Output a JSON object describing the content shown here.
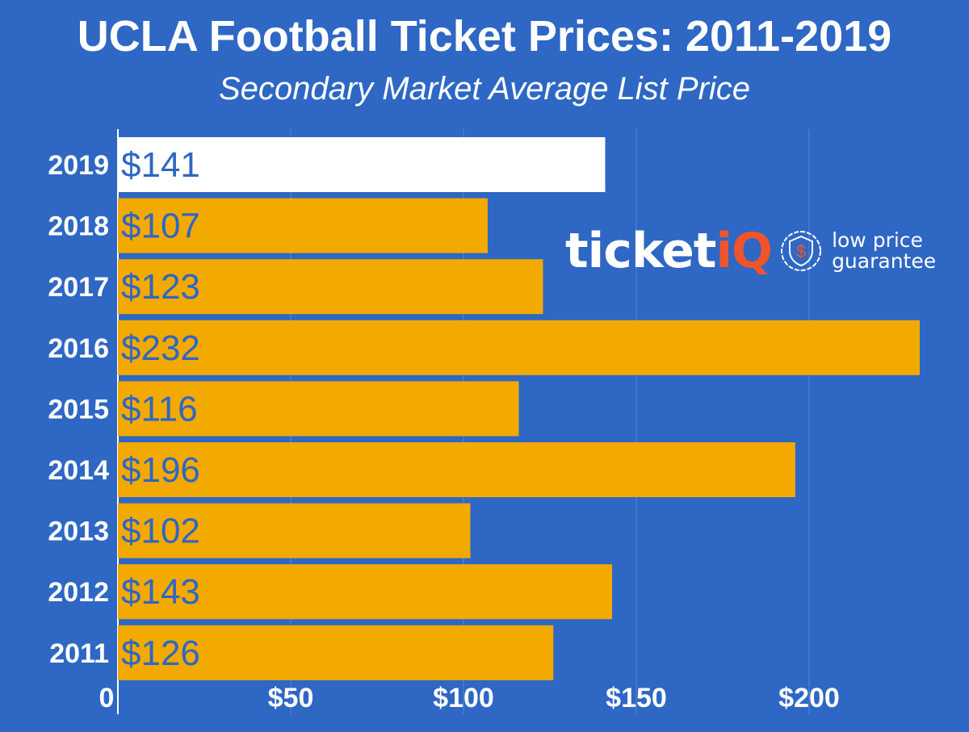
{
  "chart_data": {
    "type": "bar",
    "orientation": "horizontal",
    "title": "UCLA Football Ticket Prices: 2011-2019",
    "subtitle": "Secondary Market Average List Price",
    "categories": [
      "2019",
      "2018",
      "2017",
      "2016",
      "2015",
      "2014",
      "2013",
      "2012",
      "2011"
    ],
    "values": [
      141,
      107,
      123,
      232,
      116,
      196,
      102,
      143,
      126
    ],
    "data_labels": [
      "$141",
      "$107",
      "$123",
      "$232",
      "$116",
      "$196",
      "$102",
      "$143",
      "$126"
    ],
    "highlight_category": "2019",
    "xlim": [
      0,
      240
    ],
    "xticks": [
      0,
      50,
      100,
      150,
      200
    ],
    "xtick_labels": [
      "0",
      "$50",
      "$100",
      "$150",
      "$200"
    ],
    "grid": true,
    "colors": {
      "background": "#2e67c4",
      "bar": "#f2a900",
      "highlight_bar": "#ffffff",
      "label": "#2e67c4",
      "grid": "#5a86d0"
    }
  },
  "logo": {
    "brand_prefix": "ticket",
    "brand_suffix": "iQ",
    "tagline_line1": "low price",
    "tagline_line2": "guarantee",
    "icon": "shield-dollar-icon"
  }
}
